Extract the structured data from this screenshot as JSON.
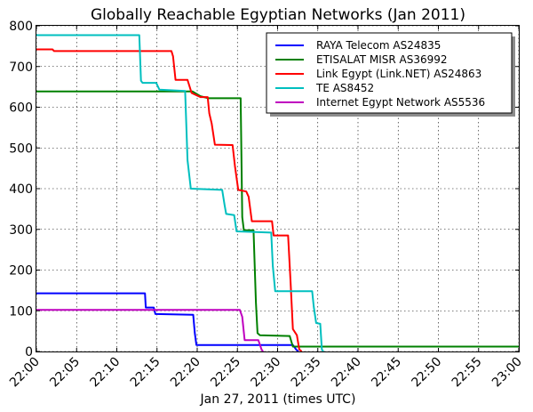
{
  "chart_data": {
    "type": "line",
    "title": "Globally Reachable Egyptian Networks (Jan 2011)",
    "xlabel": "Jan 27, 2011 (times UTC)",
    "ylabel": "",
    "x_unit": "time (HH:MM UTC)",
    "xlim": [
      "22:00",
      "23:00"
    ],
    "ylim": [
      0,
      800
    ],
    "x_ticks": [
      "22:00",
      "22:05",
      "22:10",
      "22:15",
      "22:20",
      "22:25",
      "22:30",
      "22:35",
      "22:40",
      "22:45",
      "22:50",
      "22:55",
      "23:00"
    ],
    "y_ticks": [
      0,
      100,
      200,
      300,
      400,
      500,
      600,
      700,
      800
    ],
    "grid": true,
    "legend_position": "top-right",
    "series": [
      {
        "name": "RAYA Telecom AS24835",
        "color": "#0000ff",
        "points": [
          [
            "22:00",
            143
          ],
          [
            "22:13.5",
            143
          ],
          [
            "22:13.6",
            108
          ],
          [
            "22:14.6",
            108
          ],
          [
            "22:14.8",
            92
          ],
          [
            "22:19.5",
            90
          ],
          [
            "22:19.7",
            45
          ],
          [
            "22:19.9",
            16
          ],
          [
            "22:31.9",
            16
          ],
          [
            "22:32.3",
            5
          ],
          [
            "22:32.6",
            0
          ]
        ]
      },
      {
        "name": "ETISALAT MISR AS36992",
        "color": "#008000",
        "points": [
          [
            "22:00",
            639
          ],
          [
            "22:19.4",
            639
          ],
          [
            "22:20.4",
            627
          ],
          [
            "22:21.4",
            622
          ],
          [
            "22:25.4",
            622
          ],
          [
            "22:25.6",
            330
          ],
          [
            "22:25.8",
            298
          ],
          [
            "22:27",
            298
          ],
          [
            "22:27.3",
            120
          ],
          [
            "22:27.5",
            45
          ],
          [
            "22:27.8",
            40
          ],
          [
            "22:31.5",
            38
          ],
          [
            "22:31.9",
            12
          ],
          [
            "23:00",
            12
          ]
        ]
      },
      {
        "name": "Link Egypt (Link.NET) AS24863",
        "color": "#ff0000",
        "points": [
          [
            "22:00",
            742
          ],
          [
            "22:02",
            742
          ],
          [
            "22:02.2",
            738
          ],
          [
            "22:16.8",
            738
          ],
          [
            "22:17",
            725
          ],
          [
            "22:17.3",
            667
          ],
          [
            "22:18.8",
            667
          ],
          [
            "22:19.3",
            635
          ],
          [
            "22:20.4",
            625
          ],
          [
            "22:21.3",
            625
          ],
          [
            "22:21.5",
            585
          ],
          [
            "22:21.8",
            560
          ],
          [
            "22:22.2",
            508
          ],
          [
            "22:24.4",
            507
          ],
          [
            "22:24.7",
            455
          ],
          [
            "22:25.1",
            397
          ],
          [
            "22:26.1",
            393
          ],
          [
            "22:26.4",
            380
          ],
          [
            "22:26.8",
            320
          ],
          [
            "22:29.3",
            320
          ],
          [
            "22:29.5",
            285
          ],
          [
            "22:31.3",
            285
          ],
          [
            "22:31.6",
            175
          ],
          [
            "22:31.9",
            55
          ],
          [
            "22:32.4",
            40
          ],
          [
            "22:32.7",
            5
          ],
          [
            "22:33",
            0
          ]
        ]
      },
      {
        "name": "TE AS8452",
        "color": "#00bfbf",
        "points": [
          [
            "22:00",
            777
          ],
          [
            "22:12.8",
            777
          ],
          [
            "22:13",
            665
          ],
          [
            "22:13.2",
            660
          ],
          [
            "22:14.9",
            660
          ],
          [
            "22:15.3",
            643
          ],
          [
            "22:18.5",
            640
          ],
          [
            "22:18.8",
            470
          ],
          [
            "22:19.2",
            400
          ],
          [
            "22:23.1",
            397
          ],
          [
            "22:23.4",
            360
          ],
          [
            "22:23.6",
            338
          ],
          [
            "22:24.6",
            335
          ],
          [
            "22:24.9",
            295
          ],
          [
            "22:29.2",
            292
          ],
          [
            "22:29.4",
            210
          ],
          [
            "22:29.7",
            148
          ],
          [
            "22:34.3",
            148
          ],
          [
            "22:34.5",
            110
          ],
          [
            "22:34.8",
            70
          ],
          [
            "22:35.3",
            68
          ],
          [
            "22:35.5",
            5
          ],
          [
            "22:35.7",
            0
          ]
        ]
      },
      {
        "name": "Internet Egypt Network AS5536",
        "color": "#bf00bf",
        "points": [
          [
            "22:00",
            102
          ],
          [
            "22:25.3",
            102
          ],
          [
            "22:25.6",
            85
          ],
          [
            "22:25.9",
            28
          ],
          [
            "22:27.6",
            28
          ],
          [
            "22:28",
            5
          ],
          [
            "22:28.2",
            0
          ]
        ]
      }
    ]
  }
}
